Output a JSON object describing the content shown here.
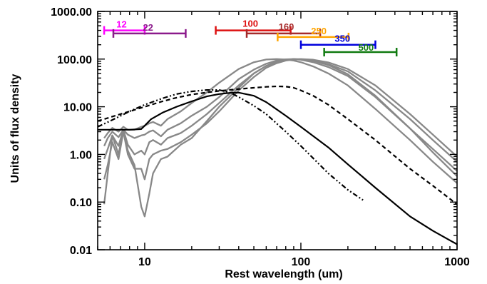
{
  "chart_data": {
    "type": "line",
    "xlabel": "Rest wavelength (um)",
    "ylabel": "Units of flux density",
    "x_scale": "log",
    "y_scale": "log",
    "xlim": [
      5,
      1000
    ],
    "ylim": [
      0.01,
      1000
    ],
    "x_ticks": [
      {
        "value": 10,
        "label": "10"
      },
      {
        "value": 100,
        "label": "100"
      },
      {
        "value": 1000,
        "label": "1000"
      }
    ],
    "y_ticks": [
      {
        "value": 0.01,
        "label": "0.01"
      },
      {
        "value": 0.1,
        "label": "0.10"
      },
      {
        "value": 1,
        "label": "1.00"
      },
      {
        "value": 10,
        "label": "10.00"
      },
      {
        "value": 100,
        "label": "100.00"
      },
      {
        "value": 1000,
        "label": "1000.00"
      }
    ],
    "bands": [
      {
        "label": "12",
        "x0": 5.5,
        "x1": 10,
        "y": 400,
        "color": "#ff00ff"
      },
      {
        "label": "22",
        "x0": 6.3,
        "x1": 18.3,
        "y": 345,
        "color": "#8b1a8b"
      },
      {
        "label": "100",
        "x0": 28.5,
        "x1": 86,
        "y": 400,
        "color": "#dd1111"
      },
      {
        "label": "160",
        "x0": 45,
        "x1": 133,
        "y": 345,
        "color": "#a52a2a"
      },
      {
        "label": "250",
        "x0": 71,
        "x1": 202,
        "y": 290,
        "color": "#ffa500"
      },
      {
        "label": "350",
        "x0": 100,
        "x1": 300,
        "y": 200,
        "color": "#0000dd"
      },
      {
        "label": "500",
        "x0": 141,
        "x1": 410,
        "y": 140,
        "color": "#107a10"
      }
    ],
    "series": [
      {
        "style": "grey",
        "color": "#888888",
        "x": [
          5.5,
          5.8,
          6.2,
          6.8,
          7.3,
          7.8,
          8.6,
          9.5,
          10,
          10.7,
          11.3,
          12.7,
          14,
          17,
          20,
          25,
          30,
          40,
          50,
          60,
          70,
          80,
          90,
          100,
          120,
          150,
          200,
          300,
          500,
          700,
          1000
        ],
        "y": [
          0.09,
          0.4,
          2.5,
          1.0,
          3.3,
          1.2,
          0.6,
          0.08,
          0.05,
          0.15,
          0.4,
          0.8,
          0.9,
          1.6,
          2.2,
          5,
          10,
          25,
          50,
          72,
          88,
          96,
          100,
          99,
          92,
          75,
          48,
          17,
          3.5,
          1.1,
          0.35
        ]
      },
      {
        "style": "grey",
        "color": "#888888",
        "x": [
          5.5,
          5.8,
          6.2,
          6.8,
          7.3,
          7.8,
          8.6,
          9.5,
          10,
          10.7,
          11.3,
          12.7,
          14,
          17,
          20,
          25,
          30,
          40,
          50,
          60,
          70,
          80,
          90,
          100,
          120,
          150,
          200,
          300,
          500,
          700,
          1000
        ],
        "y": [
          0.3,
          0.6,
          1.8,
          0.8,
          3.0,
          1.0,
          0.5,
          0.5,
          0.3,
          0.8,
          1.0,
          1.2,
          1.3,
          1.8,
          2.6,
          4.5,
          8,
          22,
          42,
          66,
          82,
          93,
          98,
          100,
          97,
          85,
          62,
          28,
          7,
          2.6,
          0.9
        ]
      },
      {
        "style": "grey",
        "color": "#888888",
        "x": [
          5.5,
          5.8,
          6.2,
          6.8,
          7.3,
          7.8,
          8.6,
          9.5,
          10,
          10.7,
          11.3,
          12.7,
          14,
          17,
          20,
          25,
          30,
          40,
          50,
          60,
          70,
          80,
          90,
          100,
          120,
          150,
          200,
          300,
          500,
          700,
          1000
        ],
        "y": [
          0.8,
          1.3,
          2.5,
          1.5,
          3.3,
          1.6,
          1.0,
          1.2,
          1.0,
          1.8,
          2.0,
          1.6,
          2.2,
          2.8,
          4,
          7,
          12,
          28,
          50,
          72,
          88,
          96,
          100,
          99,
          93,
          78,
          55,
          22,
          5.5,
          2,
          0.7
        ]
      },
      {
        "style": "grey",
        "color": "#888888",
        "x": [
          5.5,
          5.8,
          6.2,
          6.8,
          7.3,
          7.8,
          8.6,
          9.5,
          10,
          10.7,
          11.3,
          12.7,
          14,
          17,
          20,
          25,
          30,
          40,
          50,
          60,
          70,
          80,
          90,
          100,
          120,
          150,
          200,
          300,
          500,
          700,
          1000
        ],
        "y": [
          1.5,
          2.2,
          3.0,
          2.3,
          3.3,
          2.6,
          2.2,
          2.5,
          2.6,
          3.0,
          3.2,
          2.4,
          3.3,
          4.5,
          6.5,
          10,
          16,
          38,
          60,
          80,
          93,
          99,
          100,
          97,
          86,
          68,
          44,
          16,
          3.5,
          1.3,
          0.45
        ]
      },
      {
        "style": "grey",
        "color": "#888888",
        "x": [
          5.5,
          5.8,
          6.2,
          6.8,
          7.3,
          7.8,
          8.6,
          9.5,
          10,
          10.7,
          11.3,
          12.7,
          14,
          17,
          20,
          25,
          30,
          40,
          50,
          60,
          70,
          80,
          90,
          100,
          120,
          150,
          200,
          300,
          500,
          700,
          1000
        ],
        "y": [
          2.2,
          2.8,
          3.6,
          3.0,
          3.8,
          3.3,
          3.3,
          3.8,
          4.0,
          4.5,
          4.8,
          4.0,
          5.5,
          8,
          12,
          20,
          32,
          62,
          86,
          98,
          100,
          98,
          93,
          86,
          70,
          50,
          28,
          9,
          2.0,
          0.7,
          0.25
        ]
      },
      {
        "style": "solid",
        "color": "#000000",
        "x": [
          5,
          6,
          8,
          9.5,
          10,
          11,
          13,
          16,
          20,
          25,
          30,
          35,
          40,
          50,
          60,
          80,
          100,
          150,
          200,
          300,
          500,
          700,
          1000
        ],
        "y": [
          3.3,
          3.3,
          3.3,
          3.4,
          4.0,
          5.5,
          7.5,
          10,
          13,
          16.5,
          18.5,
          19.5,
          19.8,
          17,
          12.5,
          6.5,
          3.8,
          1.4,
          0.62,
          0.2,
          0.05,
          0.025,
          0.013
        ]
      },
      {
        "style": "dashed",
        "color": "#000000",
        "x": [
          5,
          6,
          8,
          10,
          13,
          16,
          20,
          25,
          30,
          40,
          50,
          60,
          70,
          80,
          90,
          100,
          120,
          150,
          200,
          300,
          500,
          700,
          1000
        ],
        "y": [
          5,
          6,
          8,
          10,
          13,
          15.5,
          18,
          20,
          21.5,
          23.5,
          25,
          26.2,
          26.8,
          26.5,
          25,
          22,
          17,
          11,
          5.5,
          2.0,
          0.5,
          0.22,
          0.09
        ]
      },
      {
        "style": "dash-dot",
        "color": "#000000",
        "x": [
          5,
          6,
          8,
          10,
          13,
          16,
          20,
          25,
          30,
          35,
          40,
          50,
          60,
          80,
          100,
          150,
          200,
          250
        ],
        "y": [
          3.8,
          5,
          8,
          11,
          15,
          18.5,
          21,
          22.5,
          22.5,
          20,
          16,
          10.5,
          7,
          3,
          1.5,
          0.4,
          0.18,
          0.11
        ]
      }
    ]
  }
}
